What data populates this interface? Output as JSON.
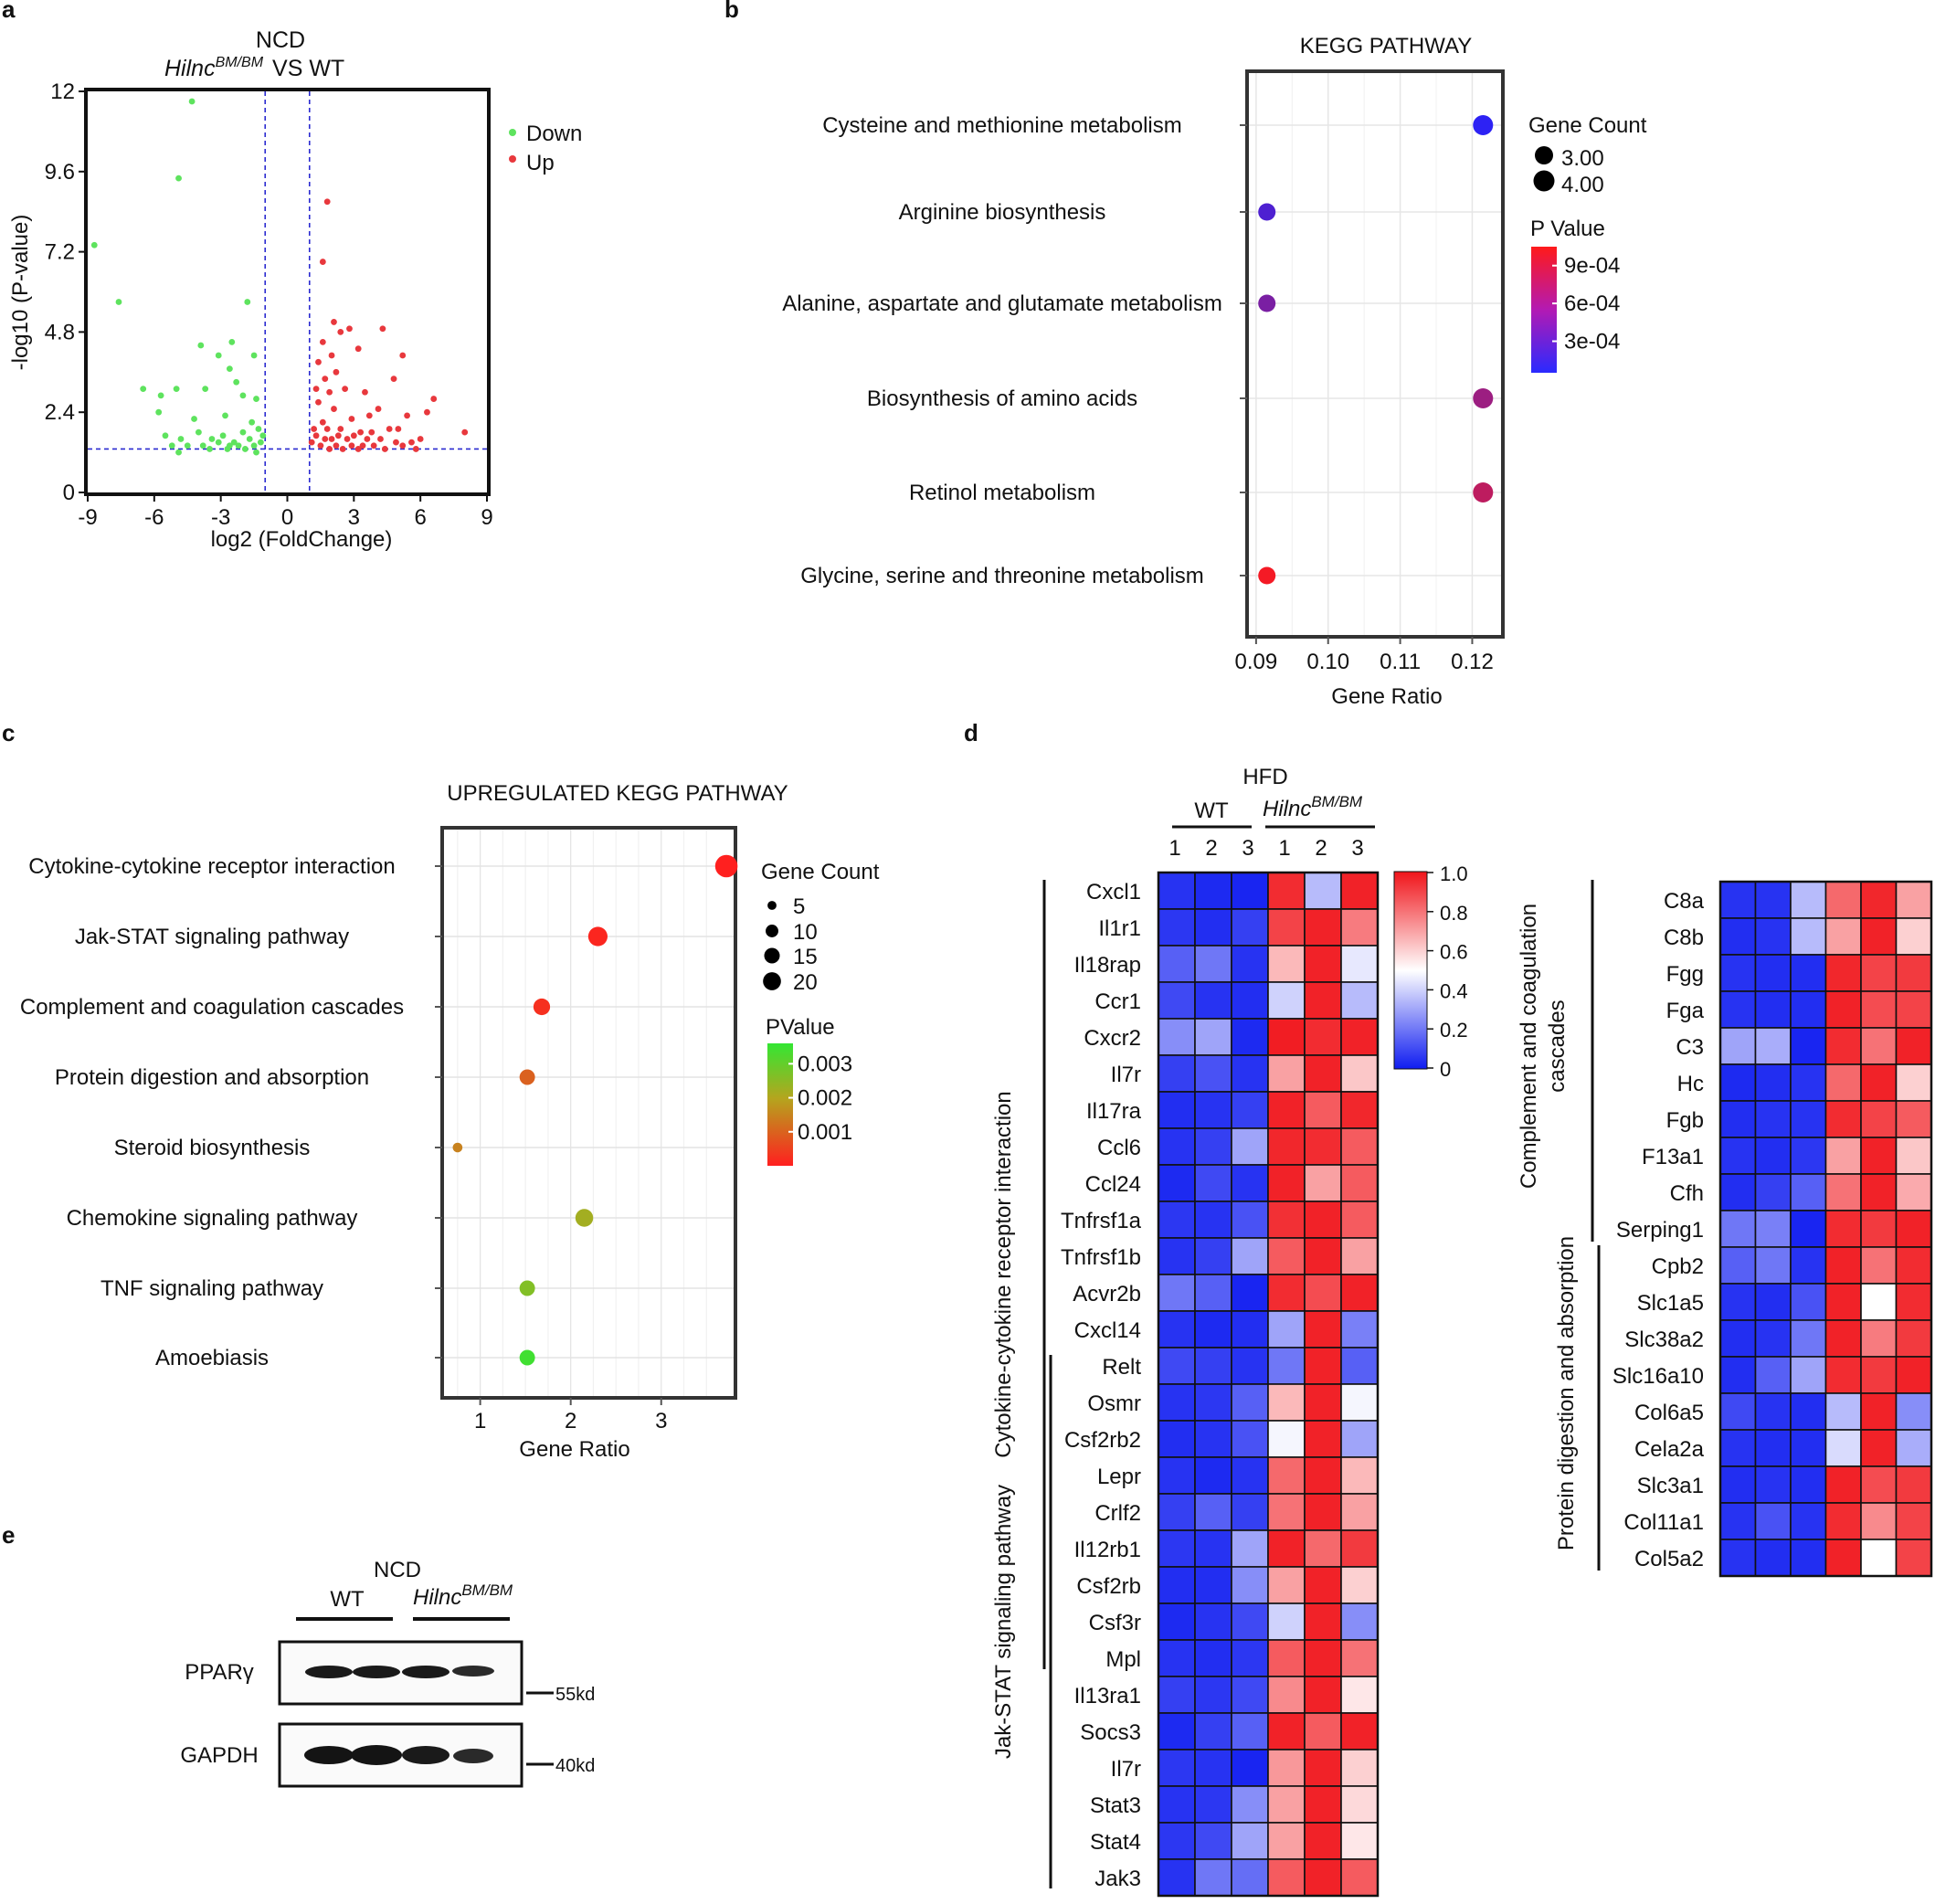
{
  "panels": {
    "a": "a",
    "b": "b",
    "c": "c",
    "d": "d",
    "e": "e"
  },
  "chart_data": [
    {
      "type": "scatter",
      "id": "volcano",
      "title_line1": "NCD",
      "title_gene": "Hilnc",
      "title_sup": "BM/BM",
      "title_rest": "VS  WT",
      "xlabel": "log2 (FoldChange)",
      "ylabel": "-log10 (P-value)",
      "xlim": [
        -9,
        9
      ],
      "ylim": [
        0,
        12
      ],
      "xticks": [
        -9,
        -6,
        -3,
        0,
        3,
        6,
        9
      ],
      "xtick_labels": [
        "-9",
        "-6",
        "-3",
        "0",
        "3",
        "6",
        "9"
      ],
      "yticks": [
        0,
        2.4,
        4.8,
        7.2,
        9.6,
        12
      ],
      "ytick_labels": [
        "0",
        "2.4",
        "4.8",
        "7.2",
        "9.6",
        "12"
      ],
      "vlines": [
        -1,
        1
      ],
      "hline": 1.3,
      "legend": [
        "Down",
        "Up"
      ],
      "colors": {
        "Down": "#5ee35e",
        "Up": "#e8383d",
        "guides": "#2a2ad0"
      },
      "series": [
        {
          "name": "Down",
          "points": [
            [
              -4.3,
              11.7
            ],
            [
              -4.9,
              9.4
            ],
            [
              -8.7,
              7.4
            ],
            [
              -7.6,
              5.7
            ],
            [
              -1.8,
              5.7
            ],
            [
              -3.9,
              4.4
            ],
            [
              -2.5,
              4.5
            ],
            [
              -3.1,
              4.1
            ],
            [
              -1.5,
              4.1
            ],
            [
              -2.6,
              3.7
            ],
            [
              -6.5,
              3.1
            ],
            [
              -5.7,
              2.9
            ],
            [
              -5.0,
              3.1
            ],
            [
              -3.7,
              3.1
            ],
            [
              -2.3,
              3.3
            ],
            [
              -2.0,
              2.9
            ],
            [
              -1.4,
              2.8
            ],
            [
              -5.8,
              2.4
            ],
            [
              -4.2,
              2.2
            ],
            [
              -2.8,
              2.3
            ],
            [
              -1.6,
              2.1
            ],
            [
              -5.5,
              1.7
            ],
            [
              -4.8,
              1.6
            ],
            [
              -4.0,
              1.8
            ],
            [
              -3.4,
              1.6
            ],
            [
              -2.9,
              1.7
            ],
            [
              -2.4,
              1.5
            ],
            [
              -2.0,
              1.8
            ],
            [
              -1.7,
              1.6
            ],
            [
              -1.3,
              1.9
            ],
            [
              -5.2,
              1.4
            ],
            [
              -4.5,
              1.4
            ],
            [
              -3.8,
              1.4
            ],
            [
              -3.1,
              1.5
            ],
            [
              -2.6,
              1.4
            ],
            [
              -2.2,
              1.4
            ],
            [
              -1.9,
              1.3
            ],
            [
              -1.5,
              1.4
            ],
            [
              -1.2,
              1.5
            ],
            [
              -3.5,
              1.3
            ],
            [
              -2.7,
              1.3
            ],
            [
              -1.4,
              1.2
            ],
            [
              -4.9,
              1.2
            ],
            [
              -1.1,
              1.7
            ]
          ]
        },
        {
          "name": "Up",
          "points": [
            [
              1.8,
              8.7
            ],
            [
              1.6,
              6.9
            ],
            [
              2.1,
              5.1
            ],
            [
              2.8,
              4.9
            ],
            [
              4.3,
              4.9
            ],
            [
              2.4,
              4.8
            ],
            [
              1.6,
              4.5
            ],
            [
              3.2,
              4.3
            ],
            [
              2.0,
              4.1
            ],
            [
              5.2,
              4.1
            ],
            [
              1.4,
              3.9
            ],
            [
              2.2,
              3.6
            ],
            [
              1.7,
              3.4
            ],
            [
              4.8,
              3.4
            ],
            [
              1.3,
              3.1
            ],
            [
              2.6,
              3.1
            ],
            [
              1.9,
              3.0
            ],
            [
              3.5,
              3.0
            ],
            [
              6.6,
              2.8
            ],
            [
              1.4,
              2.7
            ],
            [
              2.1,
              2.5
            ],
            [
              4.1,
              2.5
            ],
            [
              6.3,
              2.4
            ],
            [
              1.6,
              2.1
            ],
            [
              2.9,
              2.2
            ],
            [
              3.7,
              2.3
            ],
            [
              5.4,
              2.3
            ],
            [
              1.2,
              1.9
            ],
            [
              1.8,
              1.9
            ],
            [
              2.4,
              1.9
            ],
            [
              3.3,
              1.8
            ],
            [
              4.6,
              1.9
            ],
            [
              5.0,
              1.9
            ],
            [
              8.0,
              1.8
            ],
            [
              1.3,
              1.7
            ],
            [
              2.0,
              1.6
            ],
            [
              2.7,
              1.6
            ],
            [
              3.0,
              1.7
            ],
            [
              3.6,
              1.6
            ],
            [
              4.2,
              1.6
            ],
            [
              4.9,
              1.5
            ],
            [
              5.6,
              1.5
            ],
            [
              6.0,
              1.6
            ],
            [
              1.1,
              1.5
            ],
            [
              1.5,
              1.4
            ],
            [
              2.2,
              1.4
            ],
            [
              2.9,
              1.4
            ],
            [
              3.4,
              1.4
            ],
            [
              3.9,
              1.4
            ],
            [
              5.2,
              1.4
            ],
            [
              1.9,
              1.3
            ],
            [
              2.5,
              1.3
            ],
            [
              3.2,
              1.3
            ],
            [
              4.4,
              1.3
            ],
            [
              5.8,
              1.3
            ],
            [
              1.7,
              1.6
            ],
            [
              2.3,
              1.7
            ],
            [
              3.8,
              1.8
            ]
          ]
        }
      ]
    },
    {
      "type": "scatter",
      "id": "kegg",
      "title": "KEGG PATHWAY",
      "xlabel": "Gene Ratio",
      "xlim": [
        0.089,
        0.124
      ],
      "xticks": [
        0.09,
        0.1,
        0.11,
        0.12
      ],
      "xtick_labels": [
        "0.09",
        "0.10",
        "0.11",
        "0.12"
      ],
      "categories": [
        "Cysteine and methionine metabolism",
        "Arginine biosynthesis",
        "Alanine, aspartate and glutamate metabolism",
        "Biosynthesis of amino acids",
        "Retinol metabolism",
        "Glycine, serine and threonine metabolism"
      ],
      "x": [
        0.1215,
        0.0915,
        0.0915,
        0.1215,
        0.1215,
        0.0915
      ],
      "gene_count": [
        4,
        3,
        3,
        4,
        4,
        3
      ],
      "p_value": [
        0.0001,
        0.00025,
        0.00045,
        0.0006,
        0.00075,
        0.001
      ],
      "size_legend": {
        "title": "Gene Count",
        "labels": [
          "3.00",
          "4.00"
        ],
        "values": [
          3,
          4
        ]
      },
      "color_legend": {
        "title": "P Value",
        "labels": [
          "9e-04",
          "6e-04",
          "3e-04"
        ],
        "values": [
          0.0009,
          0.0006,
          0.0003
        ],
        "range": [
          5e-05,
          0.00105
        ],
        "low_color": "#2222ff",
        "high_color": "#ff1a1a"
      }
    },
    {
      "type": "scatter",
      "id": "upregulated",
      "title": "UPREGULATED KEGG PATHWAY",
      "xlabel": "Gene Ratio",
      "xlim": [
        0.6,
        3.8
      ],
      "xticks": [
        1,
        2,
        3
      ],
      "xtick_labels": [
        "1",
        "2",
        "3"
      ],
      "categories": [
        "Cytokine-cytokine receptor interaction",
        "Jak-STAT signaling pathway",
        "Complement and coagulation cascades",
        "Protein digestion and absorption",
        "Steroid biosynthesis",
        "Chemokine signaling pathway",
        "TNF signaling pathway",
        "Amoebiasis"
      ],
      "x": [
        3.72,
        2.3,
        1.68,
        1.52,
        0.75,
        2.15,
        1.52,
        1.52
      ],
      "gene_count": [
        24,
        17,
        12,
        10,
        3,
        14,
        10,
        10
      ],
      "p_value": [
        1e-05,
        8e-05,
        0.0002,
        0.0008,
        0.0012,
        0.0019,
        0.0024,
        0.0034
      ],
      "size_legend": {
        "title": "Gene Count",
        "labels": [
          "5",
          "10",
          "15",
          "20"
        ],
        "values": [
          5,
          10,
          15,
          20
        ]
      },
      "color_legend": {
        "title": "PValue",
        "labels": [
          "0.003",
          "0.002",
          "0.001"
        ],
        "values": [
          0.003,
          0.002,
          0.001
        ],
        "range": [
          0,
          0.0036
        ]
      }
    },
    {
      "type": "heatmap",
      "id": "heatmap-left",
      "title": "HFD",
      "group1_label": "WT",
      "group2_gene": "Hilnc",
      "group2_sup": "BM/BM",
      "column_labels": [
        "1",
        "2",
        "3",
        "1",
        "2",
        "3"
      ],
      "row_labels": [
        "Cxcl1",
        "Il1r1",
        "Il18rap",
        "Ccr1",
        "Cxcr2",
        "Il7r",
        "Il17ra",
        "Ccl6",
        "Ccl24",
        "Tnfrsf1a",
        "Tnfrsf1b",
        "Acvr2b",
        "Cxcl14",
        "Relt",
        "Osmr",
        "Csf2rb2",
        "Lepr",
        "Crlf2",
        "Il12rb1",
        "Csf2rb",
        "Csf3r",
        "Mpl",
        "Il13ra1",
        "Socs3",
        "Il7r",
        "Stat3",
        "Stat4",
        "Jak3"
      ],
      "row_groups": [
        {
          "name": "Cytokine-cytokine receptor interaction",
          "rows": [
            0,
            21
          ]
        },
        {
          "name": "Jak-STAT signaling pathway",
          "rows": [
            13,
            27
          ]
        }
      ],
      "values": [
        [
          0.05,
          0.03,
          0.02,
          0.95,
          0.35,
          0.97
        ],
        [
          0.06,
          0.04,
          0.08,
          0.9,
          0.97,
          0.78
        ],
        [
          0.15,
          0.2,
          0.05,
          0.65,
          0.97,
          0.45
        ],
        [
          0.1,
          0.05,
          0.04,
          0.4,
          0.97,
          0.35
        ],
        [
          0.25,
          0.3,
          0.03,
          0.98,
          0.95,
          0.97
        ],
        [
          0.08,
          0.12,
          0.05,
          0.7,
          0.97,
          0.62
        ],
        [
          0.04,
          0.05,
          0.08,
          0.97,
          0.85,
          0.96
        ],
        [
          0.05,
          0.08,
          0.3,
          0.96,
          0.95,
          0.85
        ],
        [
          0.03,
          0.1,
          0.05,
          0.97,
          0.7,
          0.85
        ],
        [
          0.06,
          0.05,
          0.12,
          0.94,
          0.97,
          0.85
        ],
        [
          0.05,
          0.08,
          0.3,
          0.85,
          0.97,
          0.7
        ],
        [
          0.2,
          0.15,
          0.02,
          0.95,
          0.88,
          0.97
        ],
        [
          0.05,
          0.03,
          0.04,
          0.3,
          0.97,
          0.22
        ],
        [
          0.1,
          0.08,
          0.05,
          0.2,
          0.97,
          0.15
        ],
        [
          0.05,
          0.06,
          0.15,
          0.65,
          0.97,
          0.48
        ],
        [
          0.04,
          0.05,
          0.12,
          0.48,
          0.97,
          0.3
        ],
        [
          0.05,
          0.03,
          0.05,
          0.82,
          0.97,
          0.65
        ],
        [
          0.08,
          0.15,
          0.08,
          0.8,
          0.97,
          0.7
        ],
        [
          0.06,
          0.05,
          0.3,
          0.97,
          0.82,
          0.92
        ],
        [
          0.04,
          0.04,
          0.25,
          0.7,
          0.97,
          0.6
        ],
        [
          0.03,
          0.05,
          0.1,
          0.4,
          0.97,
          0.25
        ],
        [
          0.05,
          0.04,
          0.06,
          0.85,
          0.97,
          0.8
        ],
        [
          0.08,
          0.06,
          0.1,
          0.75,
          0.97,
          0.55
        ],
        [
          0.03,
          0.08,
          0.15,
          0.97,
          0.85,
          0.97
        ],
        [
          0.06,
          0.05,
          0.02,
          0.72,
          0.97,
          0.6
        ],
        [
          0.05,
          0.06,
          0.25,
          0.7,
          0.97,
          0.58
        ],
        [
          0.06,
          0.1,
          0.3,
          0.7,
          0.97,
          0.55
        ],
        [
          0.05,
          0.2,
          0.18,
          0.85,
          0.97,
          0.85
        ]
      ],
      "color_scale": {
        "ticks": [
          1.0,
          0.8,
          0.6,
          0.4,
          0.2,
          0
        ],
        "tick_labels": [
          "1.0",
          "0.8",
          "0.6",
          "0.4",
          "0.2",
          "0"
        ],
        "low_color": "#0f1cf0",
        "mid_color": "#ffffff",
        "high_color": "#f0141a"
      }
    },
    {
      "type": "heatmap",
      "id": "heatmap-right",
      "row_labels": [
        "C8a",
        "C8b",
        "Fgg",
        "Fga",
        "C3",
        "Hc",
        "Fgb",
        "F13a1",
        "Cfh",
        "Serping1",
        "Cpb2",
        "Slc1a5",
        "Slc38a2",
        "Slc16a10",
        "Col6a5",
        "Cela2a",
        "Slc3a1",
        "Col11a1",
        "Col5a2"
      ],
      "row_groups": [
        {
          "name": "Complement and coagulation cascades",
          "rows": [
            0,
            9
          ]
        },
        {
          "name": "Protein digestion and absorption",
          "rows": [
            10,
            18
          ]
        }
      ],
      "values": [
        [
          0.05,
          0.05,
          0.35,
          0.82,
          0.96,
          0.7
        ],
        [
          0.04,
          0.05,
          0.35,
          0.7,
          0.97,
          0.6
        ],
        [
          0.05,
          0.04,
          0.04,
          0.96,
          0.9,
          0.92
        ],
        [
          0.05,
          0.04,
          0.04,
          0.97,
          0.88,
          0.9
        ],
        [
          0.3,
          0.32,
          0.02,
          0.95,
          0.8,
          0.97
        ],
        [
          0.03,
          0.04,
          0.05,
          0.82,
          0.97,
          0.6
        ],
        [
          0.04,
          0.05,
          0.05,
          0.95,
          0.9,
          0.85
        ],
        [
          0.05,
          0.04,
          0.06,
          0.7,
          0.97,
          0.62
        ],
        [
          0.04,
          0.08,
          0.15,
          0.8,
          0.97,
          0.68
        ],
        [
          0.2,
          0.22,
          0.02,
          0.95,
          0.92,
          0.97
        ],
        [
          0.15,
          0.2,
          0.05,
          0.97,
          0.8,
          0.95
        ],
        [
          0.05,
          0.04,
          0.12,
          0.97,
          0.5,
          0.95
        ],
        [
          0.04,
          0.05,
          0.2,
          0.97,
          0.78,
          0.92
        ],
        [
          0.04,
          0.15,
          0.3,
          0.95,
          0.92,
          0.97
        ],
        [
          0.1,
          0.05,
          0.04,
          0.35,
          0.97,
          0.25
        ],
        [
          0.05,
          0.04,
          0.04,
          0.42,
          0.97,
          0.32
        ],
        [
          0.04,
          0.05,
          0.04,
          0.97,
          0.88,
          0.92
        ],
        [
          0.05,
          0.12,
          0.05,
          0.95,
          0.75,
          0.9
        ],
        [
          0.05,
          0.04,
          0.04,
          0.97,
          0.5,
          0.9
        ]
      ]
    }
  ],
  "western": {
    "title": "NCD",
    "group1_label": "WT",
    "group2_gene": "Hilnc",
    "group2_sup": "BM/BM",
    "bands": [
      {
        "label": "PPARγ",
        "marker": "55kd"
      },
      {
        "label": "GAPDH",
        "marker": "40kd"
      }
    ]
  }
}
